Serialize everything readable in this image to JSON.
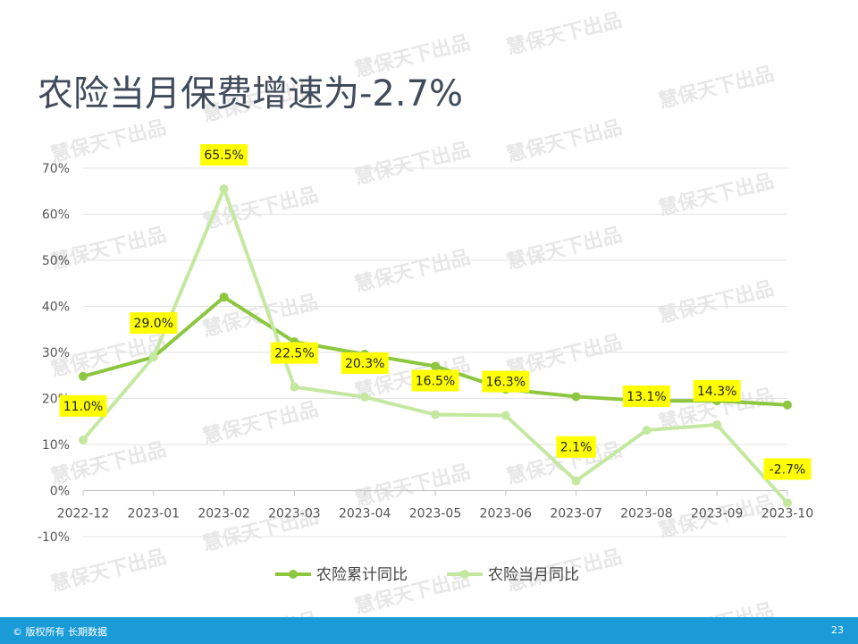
{
  "slide": {
    "title": "农险当月保费增速为-2.7%",
    "watermark_text": "慧保天下出品",
    "footer_copyright": "© 版权所有 长期数据",
    "page_number": "23"
  },
  "chart_data": {
    "type": "line",
    "title": "",
    "xlabel": "",
    "ylabel": "",
    "x": [
      "2022-12",
      "2023-01",
      "2023-02",
      "2023-03",
      "2023-04",
      "2023-05",
      "2023-06",
      "2023-07",
      "2023-08",
      "2023-09",
      "2023-10"
    ],
    "ylim": [
      -10,
      70
    ],
    "yticks": [
      -10,
      0,
      10,
      20,
      30,
      40,
      50,
      60,
      70
    ],
    "ytick_labels": [
      "-10%",
      "0%",
      "10%",
      "20%",
      "30%",
      "40%",
      "50%",
      "60%",
      "70%"
    ],
    "grid": true,
    "legend_position": "bottom",
    "series": [
      {
        "name": "农险累计同比",
        "color": "#8dc63f",
        "values": [
          24.8,
          29.0,
          42.0,
          32.3,
          29.6,
          27.0,
          22.0,
          20.4,
          19.5,
          19.5,
          18.6
        ],
        "data_labels": []
      },
      {
        "name": "农险当月同比",
        "color": "#c5e8a0",
        "values": [
          11.0,
          29.0,
          65.5,
          22.5,
          20.3,
          16.5,
          16.3,
          2.1,
          13.1,
          14.3,
          -2.7
        ],
        "data_labels": [
          "11.0%",
          "29.0%",
          "65.5%",
          "22.5%",
          "20.3%",
          "16.5%",
          "16.3%",
          "2.1%",
          "13.1%",
          "14.3%",
          "-2.7%"
        ]
      }
    ],
    "label_style": {
      "background": "#ffff00",
      "text_color": "#222222"
    }
  }
}
